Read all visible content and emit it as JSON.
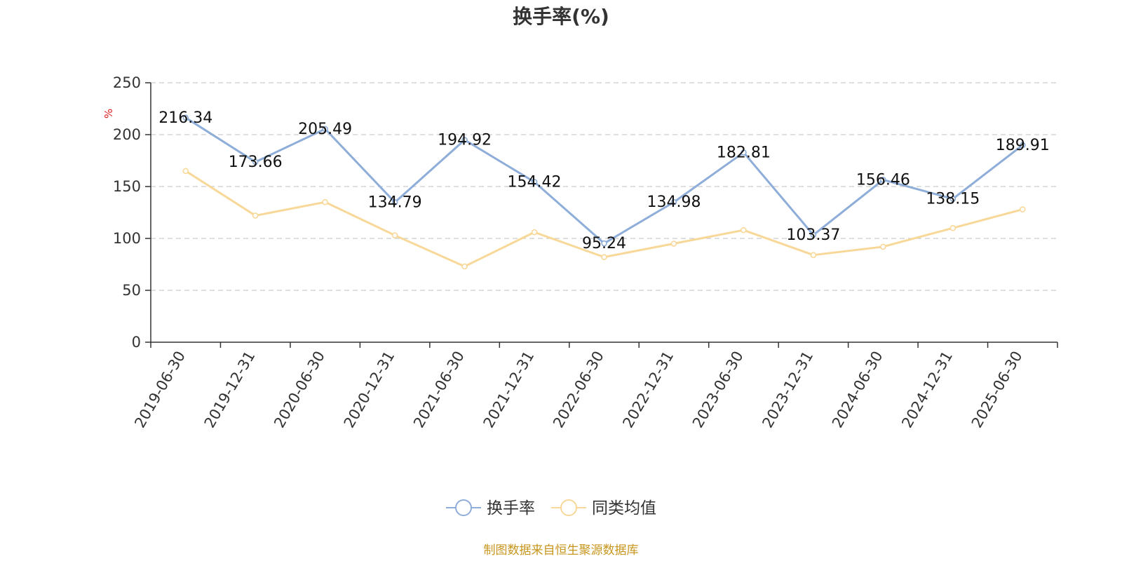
{
  "chart_data": {
    "type": "line",
    "title": "换手率(%)",
    "unit_label": "%",
    "categories": [
      "2019-06-30",
      "2019-12-31",
      "2020-06-30",
      "2020-12-31",
      "2021-06-30",
      "2021-12-31",
      "2022-06-30",
      "2022-12-31",
      "2023-06-30",
      "2023-12-31",
      "2024-06-30",
      "2024-12-31",
      "2025-06-30"
    ],
    "series": [
      {
        "name": "换手率",
        "color": "#8eadd8",
        "values": [
          216.34,
          173.66,
          205.49,
          134.79,
          194.92,
          154.42,
          95.24,
          134.98,
          182.81,
          103.37,
          156.46,
          138.15,
          189.91
        ],
        "labels": [
          "216.34",
          "173.66",
          "205.49",
          "134.79",
          "194.92",
          "154.42",
          "95.24",
          "134.98",
          "182.81",
          "103.37",
          "156.46",
          "138.15",
          "189.91"
        ]
      },
      {
        "name": "同类均值",
        "color": "#f8d898",
        "values": [
          165,
          122,
          135,
          103,
          73,
          106,
          82,
          95,
          108,
          84,
          92,
          110,
          128
        ]
      }
    ],
    "ylim": [
      0,
      250
    ],
    "yticks": [
      "0",
      "50",
      "100",
      "150",
      "200",
      "250"
    ],
    "grid": true,
    "legend_position": "bottom-center"
  },
  "source_note": "制图数据来自恒生聚源数据库"
}
